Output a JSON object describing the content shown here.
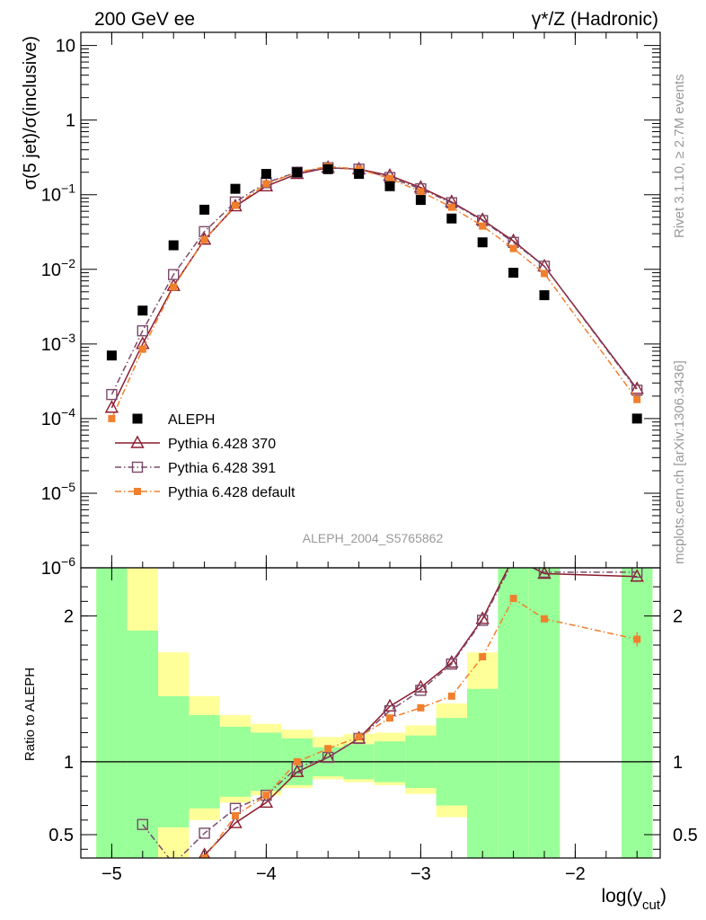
{
  "header": {
    "left": "200 GeV ee",
    "right": "γ*/Z (Hadronic)"
  },
  "side": {
    "rivet": "Rivet 3.1.10, ≥ 2.7M events",
    "mcplots": "mcplots.cern.ch [arXiv:1306.3436]"
  },
  "analysis_label": "ALEPH_2004_S5765862",
  "colors": {
    "aleph": "#000000",
    "p370": "#8b1a2e",
    "p391": "#7a4a6a",
    "pdefault": "#f07f2e",
    "band_green": "#99ff99",
    "band_yellow": "#ffff99"
  },
  "chart_data": [
    {
      "type": "scatter",
      "ylabel_main": "σ(5 jet)/σ(inclusive)",
      "ylabel_sup": "",
      "xlim": [
        -5.2,
        -1.45
      ],
      "ylim": [
        1e-06,
        15
      ],
      "yscale": "log",
      "yticks": [
        {
          "v": 1e-06,
          "base": "10",
          "exp": "−6"
        },
        {
          "v": 1e-05,
          "base": "10",
          "exp": "−5"
        },
        {
          "v": 0.0001,
          "base": "10",
          "exp": "−4"
        },
        {
          "v": 0.001,
          "base": "10",
          "exp": "−3"
        },
        {
          "v": 0.01,
          "base": "10",
          "exp": "−2"
        },
        {
          "v": 0.1,
          "base": "10",
          "exp": "−1"
        },
        {
          "v": 1,
          "base": "1",
          "exp": ""
        },
        {
          "v": 10,
          "base": "10",
          "exp": ""
        }
      ],
      "legend_position": "bottom-left",
      "series": [
        {
          "name": "ALEPH",
          "key": "aleph",
          "marker": "square-filled",
          "x": [
            -5.0,
            -4.8,
            -4.6,
            -4.4,
            -4.2,
            -4.0,
            -3.8,
            -3.6,
            -3.4,
            -3.2,
            -3.0,
            -2.8,
            -2.6,
            -2.4,
            -2.2,
            -1.6
          ],
          "y": [
            0.0007,
            0.0028,
            0.021,
            0.063,
            0.12,
            0.19,
            0.2,
            0.22,
            0.19,
            0.13,
            0.085,
            0.048,
            0.023,
            0.009,
            0.0045,
            0.0001
          ]
        },
        {
          "name": "Pythia 6.428 370",
          "key": "p370",
          "marker": "triangle-open",
          "line": "solid",
          "x": [
            -5.0,
            -4.8,
            -4.6,
            -4.4,
            -4.2,
            -4.0,
            -3.8,
            -3.6,
            -3.4,
            -3.2,
            -3.0,
            -2.8,
            -2.6,
            -2.4,
            -2.2,
            -1.6
          ],
          "y": [
            0.00014,
            0.001,
            0.006,
            0.025,
            0.07,
            0.13,
            0.19,
            0.23,
            0.22,
            0.18,
            0.125,
            0.08,
            0.046,
            0.024,
            0.011,
            0.00025
          ]
        },
        {
          "name": "Pythia 6.428 391",
          "key": "p391",
          "marker": "square-open",
          "line": "dash-dot",
          "x": [
            -5.0,
            -4.8,
            -4.6,
            -4.4,
            -4.2,
            -4.0,
            -3.8,
            -3.6,
            -3.4,
            -3.2,
            -3.0,
            -2.8,
            -2.6,
            -2.4,
            -2.2,
            -1.6
          ],
          "y": [
            0.00021,
            0.0015,
            0.0085,
            0.032,
            0.08,
            0.145,
            0.2,
            0.23,
            0.22,
            0.17,
            0.12,
            0.078,
            0.045,
            0.023,
            0.011,
            0.00024
          ]
        },
        {
          "name": "Pythia 6.428 default",
          "key": "pdefault",
          "marker": "square-small",
          "line": "dash-dot",
          "x": [
            -5.0,
            -4.8,
            -4.6,
            -4.4,
            -4.2,
            -4.0,
            -3.8,
            -3.6,
            -3.4,
            -3.2,
            -3.0,
            -2.8,
            -2.6,
            -2.4,
            -2.2,
            -1.6
          ],
          "y": [
            0.0001,
            0.00085,
            0.0058,
            0.025,
            0.072,
            0.14,
            0.2,
            0.24,
            0.22,
            0.165,
            0.11,
            0.068,
            0.038,
            0.019,
            0.0088,
            0.00018
          ]
        }
      ]
    },
    {
      "type": "line",
      "ylabel": "Ratio to ALEPH",
      "xlabel_main": "log(y",
      "xlabel_sub": "cut",
      "xlabel_tail": ")",
      "xlim": [
        -5.2,
        -1.45
      ],
      "ylim": [
        0.34,
        2.33
      ],
      "yticks": [
        {
          "v": 0.5,
          "label": "0.5"
        },
        {
          "v": 1,
          "label": "1"
        },
        {
          "v": 2,
          "label": "2"
        }
      ],
      "xticks": [
        {
          "v": -5,
          "label": "−5"
        },
        {
          "v": -4,
          "label": "−4"
        },
        {
          "v": -3,
          "label": "−3"
        },
        {
          "v": -2,
          "label": "−2"
        }
      ],
      "bands": [
        {
          "x0": -5.1,
          "x1": -4.9,
          "ylo": 0.0,
          "yhi": 3.0,
          "yy_lo": 0.0,
          "yy_hi": 3.0
        },
        {
          "x0": -4.9,
          "x1": -4.7,
          "ylo": 0.0,
          "yhi": 1.9,
          "yy_lo": 0.0,
          "yy_hi": 3.0
        },
        {
          "x0": -4.7,
          "x1": -4.5,
          "ylo": 0.55,
          "yhi": 1.45,
          "yy_lo": 0.3,
          "yy_hi": 1.75
        },
        {
          "x0": -4.5,
          "x1": -4.3,
          "ylo": 0.68,
          "yhi": 1.32,
          "yy_lo": 0.6,
          "yy_hi": 1.45
        },
        {
          "x0": -4.3,
          "x1": -4.1,
          "ylo": 0.76,
          "yhi": 1.24,
          "yy_lo": 0.72,
          "yy_hi": 1.32
        },
        {
          "x0": -4.1,
          "x1": -3.9,
          "ylo": 0.8,
          "yhi": 1.2,
          "yy_lo": 0.77,
          "yy_hi": 1.26
        },
        {
          "x0": -3.9,
          "x1": -3.7,
          "ylo": 0.84,
          "yhi": 1.16,
          "yy_lo": 0.82,
          "yy_hi": 1.22
        },
        {
          "x0": -3.7,
          "x1": -3.5,
          "ylo": 0.9,
          "yhi": 1.1,
          "yy_lo": 0.88,
          "yy_hi": 1.17
        },
        {
          "x0": -3.5,
          "x1": -3.3,
          "ylo": 0.88,
          "yhi": 1.12,
          "yy_lo": 0.86,
          "yy_hi": 1.19
        },
        {
          "x0": -3.3,
          "x1": -3.1,
          "ylo": 0.86,
          "yhi": 1.14,
          "yy_lo": 0.84,
          "yy_hi": 1.2
        },
        {
          "x0": -3.1,
          "x1": -2.9,
          "ylo": 0.82,
          "yhi": 1.18,
          "yy_lo": 0.78,
          "yy_hi": 1.25
        },
        {
          "x0": -2.9,
          "x1": -2.7,
          "ylo": 0.7,
          "yhi": 1.3,
          "yy_lo": 0.62,
          "yy_hi": 1.4
        },
        {
          "x0": -2.7,
          "x1": -2.5,
          "ylo": 0.0,
          "yhi": 1.5,
          "yy_lo": 0.4,
          "yy_hi": 1.75
        },
        {
          "x0": -2.5,
          "x1": -2.3,
          "ylo": 0.0,
          "yhi": 3.0,
          "yy_lo": 0.0,
          "yy_hi": 3.0
        },
        {
          "x0": -2.3,
          "x1": -2.1,
          "ylo": 0.0,
          "yhi": 3.0,
          "yy_lo": 0.0,
          "yy_hi": 3.0
        },
        {
          "x0": -1.7,
          "x1": -1.5,
          "ylo": 0.0,
          "yhi": 3.0,
          "yy_lo": 0.0,
          "yy_hi": 3.0
        }
      ],
      "series": [
        {
          "name": "Pythia 6.428 370",
          "key": "p370",
          "marker": "triangle-open",
          "line": "solid",
          "x": [
            -4.4,
            -4.2,
            -4.0,
            -3.8,
            -3.6,
            -3.4,
            -3.2,
            -3.0,
            -2.8,
            -2.6,
            -2.4,
            -2.2,
            -1.6
          ],
          "y": [
            0.36,
            0.58,
            0.72,
            0.93,
            1.03,
            1.16,
            1.38,
            1.51,
            1.68,
            1.98,
            2.4,
            2.29,
            2.27
          ]
        },
        {
          "name": "Pythia 6.428 391",
          "key": "p391",
          "marker": "square-open",
          "line": "dash-dot",
          "x": [
            -4.8,
            -4.6,
            -4.4,
            -4.2,
            -4.0,
            -3.8,
            -3.6,
            -3.4,
            -3.2,
            -3.0,
            -2.8,
            -2.6,
            -2.4,
            -2.2,
            -1.6
          ],
          "y": [
            0.57,
            0.3,
            0.51,
            0.68,
            0.77,
            0.96,
            1.03,
            1.16,
            1.35,
            1.49,
            1.67,
            1.97,
            2.38,
            2.3,
            2.3
          ]
        },
        {
          "name": "Pythia 6.428 default",
          "key": "pdefault",
          "marker": "square-small",
          "line": "dash-dot",
          "x": [
            -4.4,
            -4.2,
            -4.0,
            -3.8,
            -3.6,
            -3.4,
            -3.2,
            -3.0,
            -2.8,
            -2.6,
            -2.4,
            -2.2,
            -1.6
          ],
          "y": [
            0.34,
            0.63,
            0.77,
            1.0,
            1.09,
            1.17,
            1.3,
            1.37,
            1.45,
            1.72,
            2.12,
            1.98,
            1.84
          ],
          "yerr_last": 0.05
        }
      ]
    }
  ]
}
